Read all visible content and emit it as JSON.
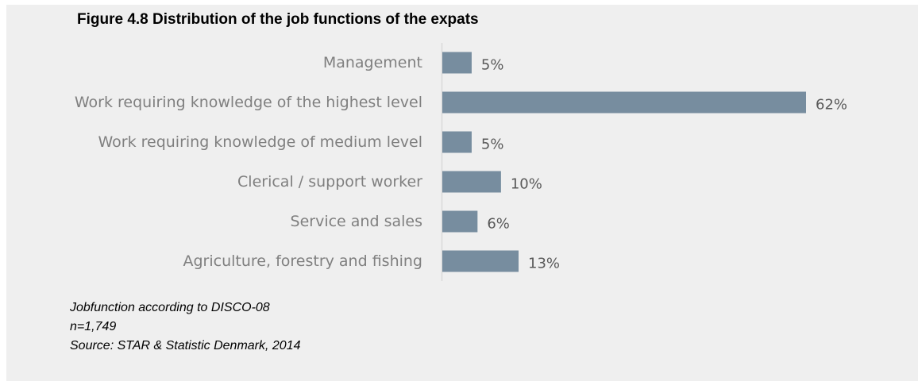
{
  "chart_data": {
    "type": "bar",
    "orientation": "horizontal",
    "title": "Figure 4.8 Distribution of the job functions of the expats",
    "categories": [
      "Management",
      "Work requiring knowledge of the highest level",
      "Work requiring knowledge of medium level",
      "Clerical / support worker",
      "Service and sales",
      "Agriculture, forestry and fishing"
    ],
    "values": [
      5,
      62,
      5,
      10,
      6,
      13
    ],
    "value_labels": [
      "5%",
      "62%",
      "5%",
      "10%",
      "6%",
      "13%"
    ],
    "unit": "%",
    "xlim": [
      0,
      62
    ],
    "grid": false,
    "colors": {
      "bar": "#778d9f",
      "axis": "#d9d9d9",
      "background": "#efefef"
    }
  },
  "notes": {
    "line1": "Jobfunction according to DISCO-08",
    "line2": "n=1,749",
    "line3": "Source: STAR & Statistic Denmark, 2014"
  }
}
